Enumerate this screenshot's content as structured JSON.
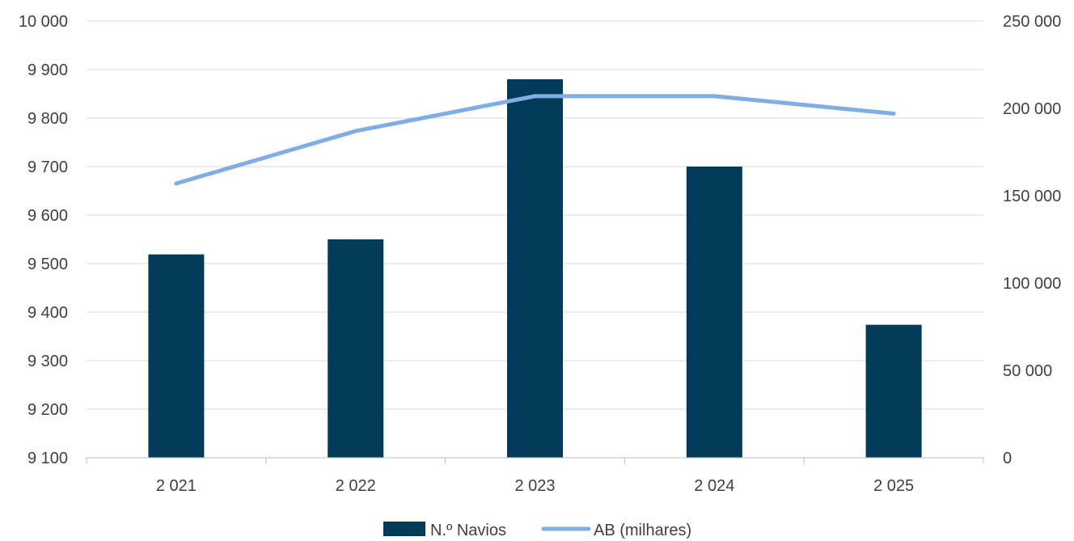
{
  "chart_data": {
    "type": "bar",
    "categories": [
      "2 021",
      "2 022",
      "2 023",
      "2 024",
      "2 025"
    ],
    "series": [
      {
        "name": "N.º Navios",
        "type": "bar",
        "axis": "left",
        "color": "#023a59",
        "values": [
          9519,
          9550,
          9880,
          9700,
          9374
        ]
      },
      {
        "name": "AB (milhares)",
        "type": "line",
        "axis": "right",
        "color": "#7faee4",
        "values": [
          157000,
          187000,
          207000,
          207000,
          197000
        ]
      }
    ],
    "ylim_left": [
      9100,
      10000
    ],
    "yticks_left": [
      "9 100",
      "9 200",
      "9 300",
      "9 400",
      "9 500",
      "9 600",
      "9 700",
      "9 800",
      "9 900",
      "10 000"
    ],
    "ylim_right": [
      0,
      250000
    ],
    "yticks_right": [
      "0",
      "50 000",
      "100 000",
      "150 000",
      "200 000",
      "250 000"
    ],
    "grid": true,
    "legend_position": "bottom"
  }
}
